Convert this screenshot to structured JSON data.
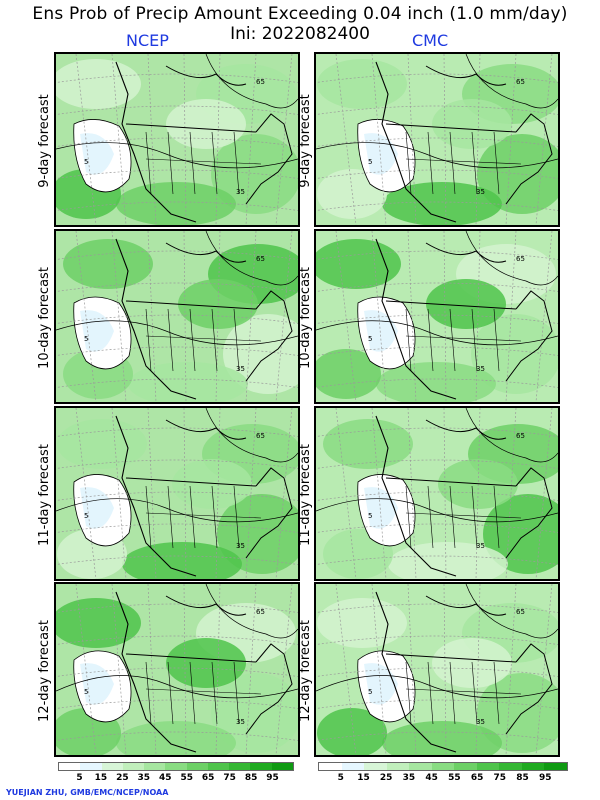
{
  "title": "Ens Prob of Precip Amount Exceeding 0.04 inch (1.0 mm/day)",
  "init_label": "Ini: 2022082400",
  "models": [
    "NCEP",
    "CMC"
  ],
  "rows": [
    {
      "label": "9-day forecast"
    },
    {
      "label": "10-day forecast"
    },
    {
      "label": "11-day forecast"
    },
    {
      "label": "12-day forecast"
    }
  ],
  "contour_labels": [
    "5",
    "35",
    "65"
  ],
  "colorbar": {
    "labels": [
      "5",
      "15",
      "25",
      "35",
      "45",
      "55",
      "65",
      "75",
      "85",
      "95"
    ],
    "colors": [
      "#ffffff",
      "#e6f7ff",
      "#d7f5d7",
      "#c1efbc",
      "#a6e6a0",
      "#89dc82",
      "#6dd066",
      "#4fc44b",
      "#35b734",
      "#1faa20",
      "#0f9a12"
    ]
  },
  "credit": "YUEJIAN ZHU, GMB/EMC/NCEP/NOAA"
}
